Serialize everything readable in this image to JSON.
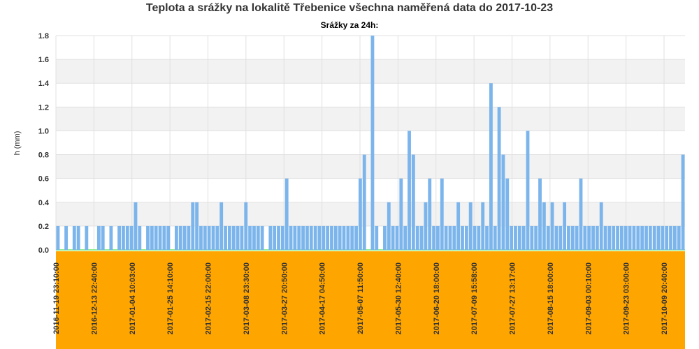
{
  "chart_data": {
    "type": "bar",
    "title": "Teplota a srážky na lokalitě Třebenice všechna naměřená data do 2017-10-23",
    "subtitle": "Srážky za 24h:",
    "ylabel": "h (mm)",
    "xlabel": "",
    "ylim": [
      0,
      1.8
    ],
    "yticks": [
      "0.0",
      "0.2",
      "0.4",
      "0.6",
      "0.8",
      "1.0",
      "1.2",
      "1.4",
      "1.6",
      "1.8"
    ],
    "x_ticks": [
      "2016-11-19 23:10:00",
      "2016-12-13 22:40:00",
      "2017-01-04 10:03:00",
      "2017-01-25 14:10:00",
      "2017-02-15 22:00:00",
      "2017-03-08 23:30:00",
      "2017-03-27 20:50:00",
      "2017-04-17 04:50:00",
      "2017-05-07 11:50:00",
      "2017-05-30 12:40:00",
      "2017-06-20 18:00:00",
      "2017-07-09 15:58:00",
      "2017-07-27 13:17:00",
      "2017-08-15 18:00:00",
      "2017-09-03 00:10:00",
      "2017-09-23 03:00:00",
      "2017-10-09 20:40:00"
    ],
    "grid": true,
    "colors": {
      "bar": "#7cb5ec",
      "axis_band": "#ffa500",
      "grid_band": "#f2f2f2",
      "zero_line": "#90ee90"
    },
    "series": [
      {
        "values": [
          0.2,
          0,
          0.2,
          0,
          0.2,
          0.2,
          0,
          0.2,
          0,
          0,
          0.2,
          0.2,
          0,
          0.2,
          0,
          0.2,
          0.2,
          0.2,
          0.2,
          0.4,
          0.2,
          0,
          0.2,
          0.2,
          0.2,
          0.2,
          0.2,
          0.2,
          0,
          0.2,
          0.2,
          0.2,
          0.2,
          0.4,
          0.4,
          0.2,
          0.2,
          0.2,
          0.2,
          0.2,
          0.4,
          0.2,
          0.2,
          0.2,
          0.2,
          0.2,
          0.4,
          0.2,
          0.2,
          0.2,
          0.2,
          0,
          0.2,
          0.2,
          0.2,
          0.2,
          0.6,
          0.2,
          0.2,
          0.2,
          0.2,
          0.2,
          0.2,
          0.2,
          0.2,
          0.2,
          0.2,
          0.2,
          0.2,
          0.2,
          0.2,
          0.2,
          0.2,
          0.2,
          0.6,
          0.8,
          0,
          1.8,
          0.2,
          0,
          0.2,
          0.4,
          0.2,
          0.2,
          0.6,
          0.2,
          1.0,
          0.8,
          0.2,
          0.2,
          0.4,
          0.6,
          0.2,
          0.2,
          0.6,
          0.2,
          0.2,
          0.2,
          0.4,
          0.2,
          0.2,
          0.4,
          0.2,
          0.2,
          0.4,
          0.2,
          1.4,
          0.2,
          1.2,
          0.8,
          0.6,
          0.2,
          0.2,
          0.2,
          0.2,
          1.0,
          0.2,
          0.2,
          0.6,
          0.4,
          0.2,
          0.4,
          0.2,
          0.2,
          0.4,
          0.2,
          0.2,
          0.2,
          0.6,
          0.2,
          0.2,
          0.2,
          0.2,
          0.4,
          0.2,
          0.2,
          0.2,
          0.2,
          0.2,
          0.2,
          0.2,
          0.2,
          0.2,
          0.2,
          0.2,
          0.2,
          0.2,
          0.2,
          0.2,
          0.2,
          0.2,
          0.2,
          0.2,
          0.8
        ]
      }
    ]
  }
}
